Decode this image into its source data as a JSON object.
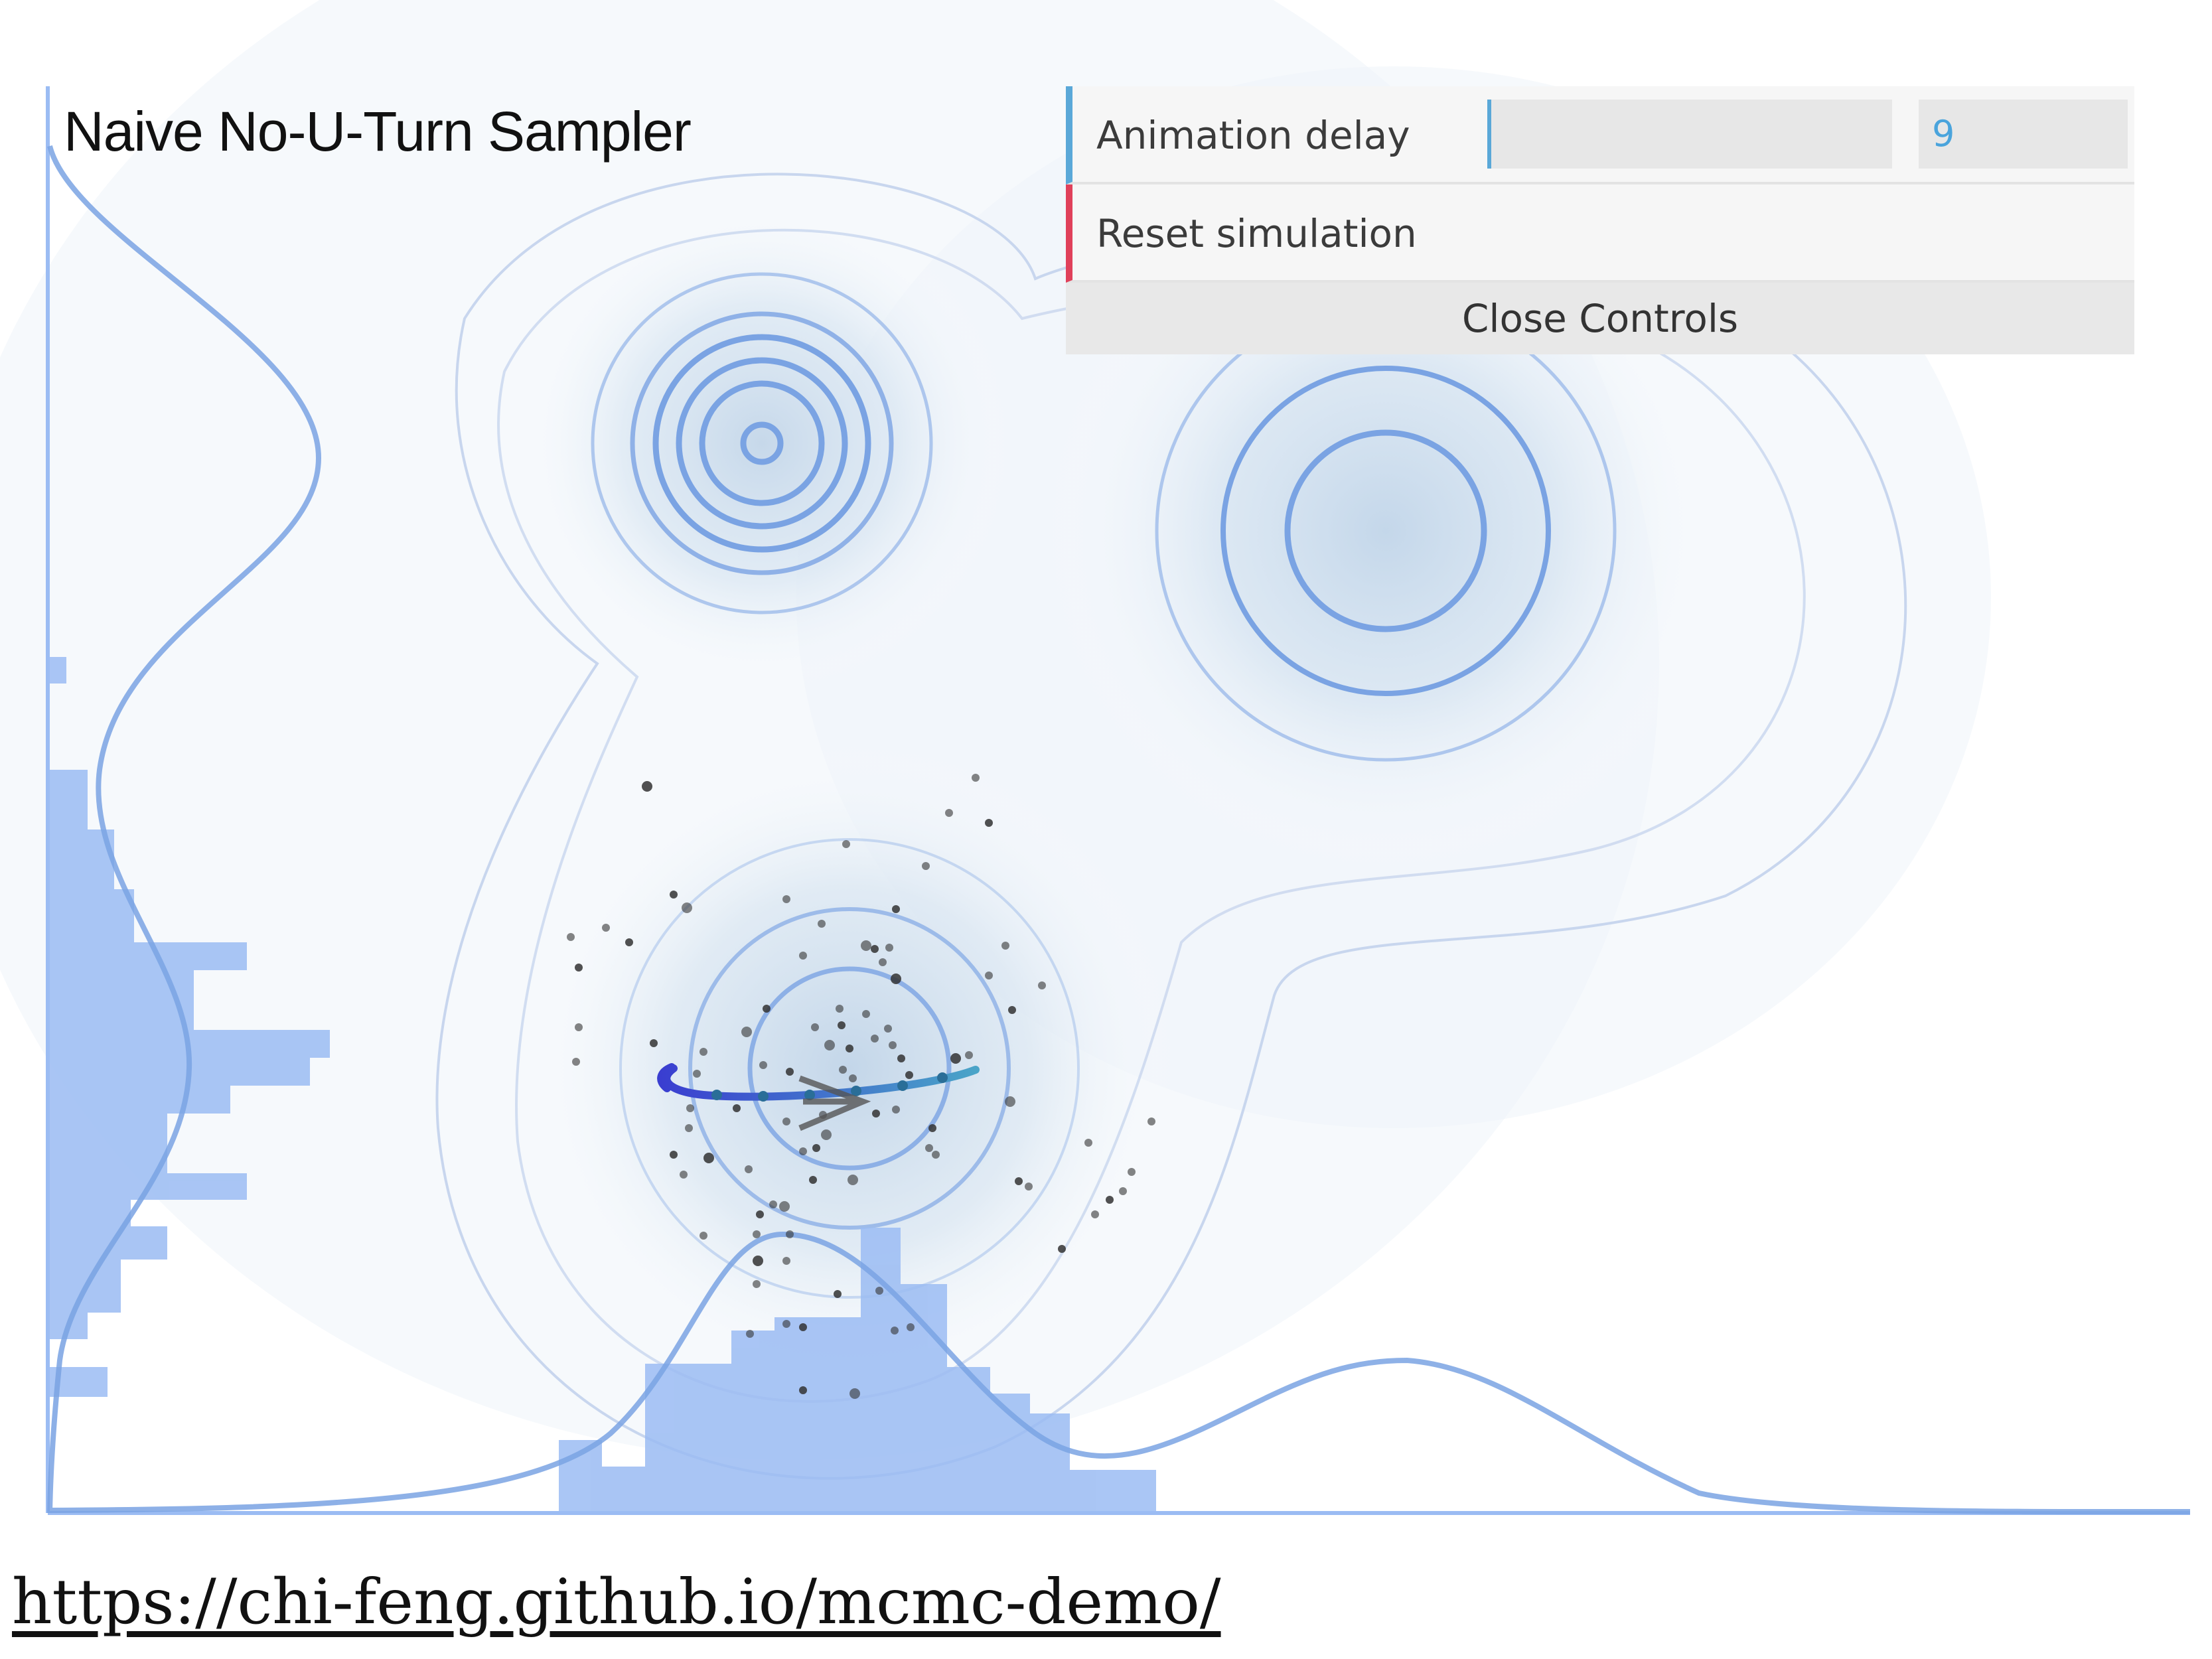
{
  "simulation": {
    "title": "Naive No-U-Turn Sampler"
  },
  "controls": {
    "animation_delay": {
      "label": "Animation delay",
      "value": "9",
      "fill_fraction": 0.0
    },
    "reset_label": "Reset simulation",
    "close_label": "Close Controls"
  },
  "footer": {
    "link_text": "https://chi-feng.github.io/mcmc-demo/"
  },
  "colors": {
    "contour": "#7aa3e3",
    "histogram": "#9bbcf3",
    "trajectory_start": "#3a3ed0",
    "trajectory_end": "#4aa4c8",
    "slider_accent": "#5aa8d8",
    "reset_accent": "#e0405a"
  }
}
